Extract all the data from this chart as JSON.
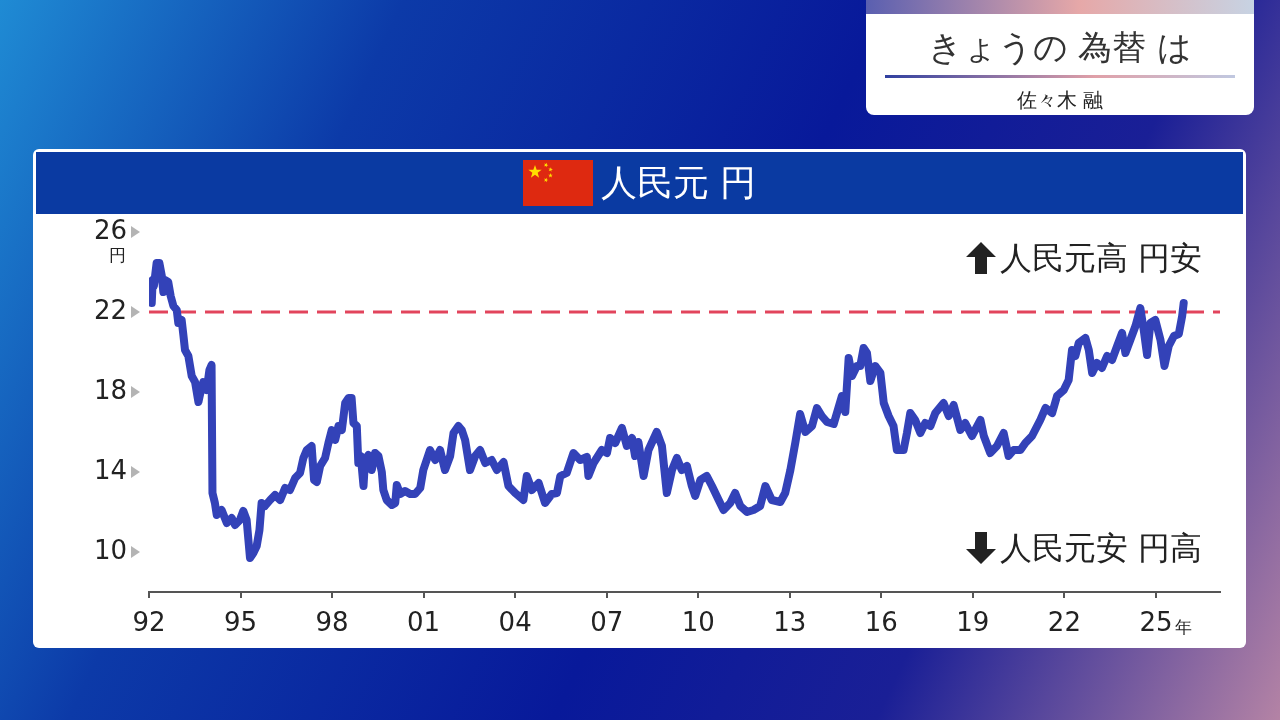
{
  "chart_data": {
    "type": "line",
    "title": "人民元 円",
    "xlabel": "年",
    "ylabel": "円",
    "annotations": [
      "人民元高 円安",
      "人民元安 円高",
      "きょうの 為替 は",
      "佐々木 融"
    ],
    "x": [
      1992.09,
      1992.12,
      1992.16,
      1992.25,
      1992.34,
      1992.42,
      1992.47,
      1992.52,
      1992.63,
      1992.71,
      1992.8,
      1992.91,
      1992.96,
      1993.07,
      1993.13,
      1993.18,
      1993.29,
      1993.4,
      1993.51,
      1993.62,
      1993.69,
      1993.78,
      1993.89,
      1993.98,
      1994.05,
      1994.08,
      1994.16,
      1994.22,
      1994.38,
      1994.55,
      1994.71,
      1994.82,
      1994.98,
      1995.09,
      1995.2,
      1995.31,
      1995.42,
      1995.53,
      1995.62,
      1995.69,
      1995.8,
      1995.97,
      1996.13,
      1996.3,
      1996.46,
      1996.62,
      1996.79,
      1996.95,
      1997.06,
      1997.17,
      1997.33,
      1997.41,
      1997.5,
      1997.61,
      1997.77,
      1997.88,
      1997.99,
      1998.1,
      1998.21,
      1998.32,
      1998.43,
      1998.54,
      1998.64,
      1998.7,
      1998.81,
      1998.86,
      1998.94,
      1999.03,
      1999.08,
      1999.19,
      1999.3,
      1999.41,
      1999.52,
      1999.63,
      1999.68,
      1999.79,
      1999.96,
      2000.07,
      2000.12,
      2000.23,
      2000.39,
      2000.56,
      2000.72,
      2000.89,
      2000.99,
      2001.21,
      2001.38,
      2001.54,
      2001.7,
      2001.87,
      2001.98,
      2002.14,
      2002.25,
      2002.36,
      2002.52,
      2002.69,
      2002.85,
      2003.02,
      2003.23,
      2003.4,
      2003.62,
      2003.78,
      2004.0,
      2004.27,
      2004.38,
      2004.55,
      2004.77,
      2004.98,
      2005.2,
      2005.37,
      2005.48,
      2005.69,
      2005.91,
      2006.13,
      2006.35,
      2006.4,
      2006.57,
      2006.84,
      2007.01,
      2007.11,
      2007.28,
      2007.5,
      2007.66,
      2007.83,
      2007.93,
      2008.04,
      2008.21,
      2008.37,
      2008.64,
      2008.81,
      2008.97,
      2009.14,
      2009.3,
      2009.46,
      2009.63,
      2009.79,
      2009.9,
      2010.07,
      2010.28,
      2010.45,
      2010.67,
      2010.83,
      2011.05,
      2011.21,
      2011.38,
      2011.6,
      2011.81,
      2012.03,
      2012.2,
      2012.41,
      2012.69,
      2012.85,
      2013.02,
      2013.18,
      2013.34,
      2013.51,
      2013.73,
      2013.89,
      2014.05,
      2014.22,
      2014.44,
      2014.71,
      2014.82,
      2014.93,
      2015.04,
      2015.2,
      2015.31,
      2015.42,
      2015.53,
      2015.64,
      2015.8,
      2015.97,
      2016.08,
      2016.24,
      2016.4,
      2016.51,
      2016.73,
      2016.84,
      2016.95,
      2017.11,
      2017.28,
      2017.44,
      2017.61,
      2017.77,
      2018.04,
      2018.21,
      2018.37,
      2018.59,
      2018.75,
      2018.97,
      2019.25,
      2019.36,
      2019.57,
      2019.79,
      2020.01,
      2020.17,
      2020.34,
      2020.56,
      2020.72,
      2020.94,
      2021.21,
      2021.38,
      2021.6,
      2021.76,
      2021.98,
      2022.14,
      2022.25,
      2022.36,
      2022.47,
      2022.69,
      2022.8,
      2022.91,
      2023.07,
      2023.23,
      2023.4,
      2023.56,
      2023.73,
      2023.89,
      2024.0,
      2024.16,
      2024.33,
      2024.49,
      2024.6,
      2024.71,
      2024.82,
      2024.98,
      2025.15,
      2025.28,
      2025.42,
      2025.59,
      2025.75,
      2025.86,
      2025.91
    ],
    "series": [
      {
        "color": "#3342b8",
        "values": [
          22.45,
          23.6,
          23.3,
          24.45,
          24.45,
          23.8,
          23.0,
          23.6,
          23.5,
          22.8,
          22.3,
          22.1,
          21.45,
          21.6,
          20.8,
          20.1,
          19.8,
          18.8,
          18.5,
          17.5,
          18.0,
          18.5,
          18.1,
          19.1,
          19.35,
          12.95,
          12.45,
          11.85,
          12.1,
          11.45,
          11.7,
          11.35,
          11.6,
          12.05,
          11.6,
          9.7,
          9.95,
          10.3,
          11.1,
          12.45,
          12.3,
          12.6,
          12.85,
          12.6,
          13.2,
          13.1,
          13.7,
          13.95,
          14.7,
          15.1,
          15.3,
          13.6,
          13.5,
          14.3,
          14.7,
          15.45,
          16.1,
          15.6,
          16.3,
          16.1,
          17.45,
          17.7,
          17.7,
          16.45,
          16.3,
          14.45,
          14.8,
          13.3,
          14.6,
          14.85,
          14.1,
          14.95,
          14.8,
          14.0,
          13.1,
          12.6,
          12.35,
          12.45,
          13.35,
          12.9,
          13.05,
          12.9,
          12.9,
          13.2,
          14.1,
          15.1,
          14.6,
          15.1,
          14.1,
          14.8,
          15.95,
          16.3,
          16.1,
          15.6,
          14.1,
          14.8,
          15.1,
          14.45,
          14.6,
          14.1,
          14.5,
          13.3,
          12.95,
          12.6,
          13.8,
          13.1,
          13.45,
          12.45,
          12.9,
          12.95,
          13.8,
          13.95,
          14.95,
          14.6,
          14.75,
          13.8,
          14.45,
          15.1,
          14.95,
          15.7,
          15.45,
          16.2,
          15.3,
          15.7,
          14.8,
          15.5,
          13.8,
          15.1,
          16.0,
          15.3,
          12.95,
          14.1,
          14.7,
          14.1,
          14.3,
          13.3,
          12.8,
          13.6,
          13.8,
          13.3,
          12.6,
          12.1,
          12.45,
          12.95,
          12.3,
          12.0,
          12.1,
          12.3,
          13.3,
          12.6,
          12.5,
          12.95,
          14.1,
          15.45,
          16.9,
          16.0,
          16.3,
          17.2,
          16.8,
          16.5,
          16.4,
          17.8,
          17.0,
          19.7,
          18.8,
          19.3,
          19.3,
          20.2,
          19.95,
          18.55,
          19.3,
          18.95,
          17.45,
          16.8,
          16.3,
          15.1,
          15.1,
          15.95,
          16.95,
          16.6,
          15.95,
          16.45,
          16.3,
          16.95,
          17.45,
          16.8,
          17.35,
          16.1,
          16.45,
          15.8,
          16.6,
          15.8,
          14.95,
          15.3,
          15.95,
          14.8,
          15.1,
          15.1,
          15.45,
          15.8,
          16.6,
          17.2,
          16.95,
          17.8,
          18.1,
          18.6,
          20.1,
          19.8,
          20.45,
          20.7,
          20.1,
          18.95,
          19.45,
          19.2,
          19.8,
          19.6,
          20.3,
          20.95,
          19.95,
          20.6,
          21.3,
          22.2,
          21.1,
          19.85,
          21.45,
          21.6,
          20.6,
          19.3,
          20.3,
          20.8,
          20.9,
          21.8,
          22.45
        ]
      }
    ],
    "xlim": [
      1992,
      2027.1
    ],
    "ylim": [
      8,
      26
    ],
    "xticks": [
      {
        "value": 1992,
        "label": "92"
      },
      {
        "value": 1995,
        "label": "95"
      },
      {
        "value": 1998,
        "label": "98"
      },
      {
        "value": 2001,
        "label": "01"
      },
      {
        "value": 2004,
        "label": "04"
      },
      {
        "value": 2007,
        "label": "07"
      },
      {
        "value": 2010,
        "label": "10"
      },
      {
        "value": 2013,
        "label": "13"
      },
      {
        "value": 2016,
        "label": "16"
      },
      {
        "value": 2019,
        "label": "19"
      },
      {
        "value": 2022,
        "label": "22"
      },
      {
        "value": 2025,
        "label": "25"
      }
    ],
    "yticks": [
      10,
      14,
      18,
      22,
      26
    ],
    "ref_lines": [
      {
        "axis": "y",
        "value": 22,
        "color": "#e2445c",
        "line_style": "dashed"
      }
    ],
    "grid": false,
    "legend": false,
    "marker": "none",
    "line_style": "solid"
  }
}
